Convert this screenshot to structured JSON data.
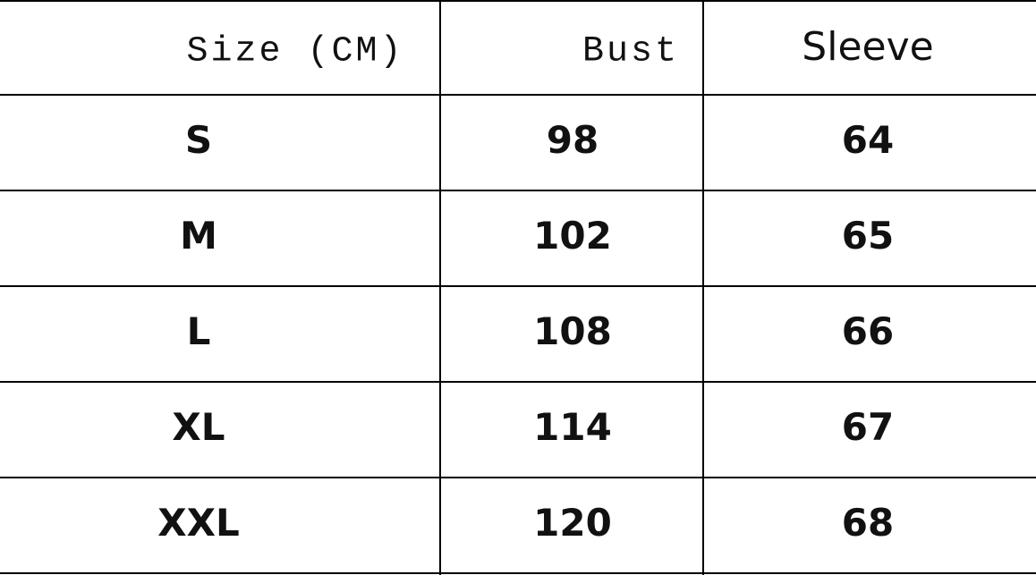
{
  "table": {
    "header": [
      "Size (CM)",
      "Bust",
      "Sleeve"
    ],
    "rows": [
      [
        "S",
        98,
        64
      ],
      [
        "M",
        102,
        65
      ],
      [
        "L",
        108,
        66
      ],
      [
        "XL",
        114,
        67
      ],
      [
        "XXL",
        120,
        68
      ]
    ]
  }
}
